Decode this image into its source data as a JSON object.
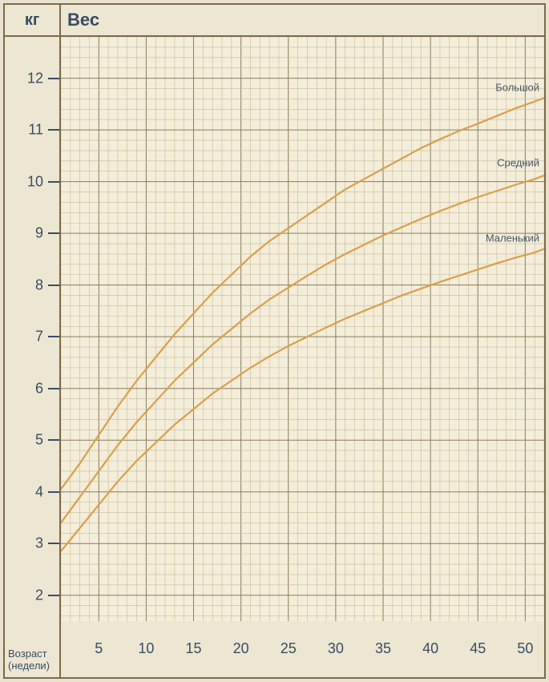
{
  "chart": {
    "type": "line",
    "unit_label": "кг",
    "title": "Вес",
    "xaxis_label_line1": "Возраст",
    "xaxis_label_line2": "(недели)",
    "background_color": "#ece6d3",
    "plot_background": "#f3edda",
    "border_color": "#7a6a4a",
    "major_grid_color": "#8b7c5a",
    "minor_grid_color": "#c7bb98",
    "text_color": "#3b4c63",
    "curve_color": "#d9a04a",
    "curve_width": 2.2,
    "title_fontsize": 22,
    "axis_tick_fontsize": 18,
    "series_label_fontsize": 13,
    "x": {
      "min": 1,
      "max": 52,
      "major_step": 5,
      "minor_step": 1,
      "ticks": [
        5,
        10,
        15,
        20,
        25,
        30,
        35,
        40,
        45,
        50
      ]
    },
    "y": {
      "min": 1.5,
      "max": 12.8,
      "major_step": 1,
      "minor_per_major": 5,
      "ticks": [
        2,
        3,
        4,
        5,
        6,
        7,
        8,
        9,
        10,
        11,
        12
      ]
    },
    "series": [
      {
        "name": "Большой",
        "label_anchor_y": 11.6,
        "points": [
          [
            1,
            4.05
          ],
          [
            3,
            4.55
          ],
          [
            5,
            5.1
          ],
          [
            7,
            5.65
          ],
          [
            9,
            6.15
          ],
          [
            11,
            6.6
          ],
          [
            13,
            7.05
          ],
          [
            15,
            7.45
          ],
          [
            17,
            7.85
          ],
          [
            19,
            8.2
          ],
          [
            21,
            8.55
          ],
          [
            23,
            8.85
          ],
          [
            25,
            9.1
          ],
          [
            27,
            9.35
          ],
          [
            29,
            9.6
          ],
          [
            31,
            9.85
          ],
          [
            33,
            10.05
          ],
          [
            35,
            10.25
          ],
          [
            37,
            10.45
          ],
          [
            39,
            10.65
          ],
          [
            41,
            10.82
          ],
          [
            43,
            10.98
          ],
          [
            45,
            11.12
          ],
          [
            47,
            11.27
          ],
          [
            49,
            11.42
          ],
          [
            51,
            11.55
          ],
          [
            52,
            11.62
          ]
        ]
      },
      {
        "name": "Средний",
        "label_anchor_y": 10.15,
        "points": [
          [
            1,
            3.4
          ],
          [
            3,
            3.9
          ],
          [
            5,
            4.4
          ],
          [
            7,
            4.9
          ],
          [
            9,
            5.35
          ],
          [
            11,
            5.75
          ],
          [
            13,
            6.15
          ],
          [
            15,
            6.5
          ],
          [
            17,
            6.85
          ],
          [
            19,
            7.15
          ],
          [
            21,
            7.45
          ],
          [
            23,
            7.72
          ],
          [
            25,
            7.95
          ],
          [
            27,
            8.18
          ],
          [
            29,
            8.4
          ],
          [
            31,
            8.6
          ],
          [
            33,
            8.78
          ],
          [
            35,
            8.96
          ],
          [
            37,
            9.12
          ],
          [
            39,
            9.28
          ],
          [
            41,
            9.43
          ],
          [
            43,
            9.57
          ],
          [
            45,
            9.7
          ],
          [
            47,
            9.82
          ],
          [
            49,
            9.94
          ],
          [
            51,
            10.05
          ],
          [
            52,
            10.12
          ]
        ]
      },
      {
        "name": "Маленький",
        "label_anchor_y": 8.7,
        "points": [
          [
            1,
            2.85
          ],
          [
            3,
            3.3
          ],
          [
            5,
            3.75
          ],
          [
            7,
            4.2
          ],
          [
            9,
            4.6
          ],
          [
            11,
            4.95
          ],
          [
            13,
            5.3
          ],
          [
            15,
            5.6
          ],
          [
            17,
            5.9
          ],
          [
            19,
            6.15
          ],
          [
            21,
            6.4
          ],
          [
            23,
            6.62
          ],
          [
            25,
            6.82
          ],
          [
            27,
            7.0
          ],
          [
            29,
            7.18
          ],
          [
            31,
            7.35
          ],
          [
            33,
            7.5
          ],
          [
            35,
            7.65
          ],
          [
            37,
            7.8
          ],
          [
            39,
            7.93
          ],
          [
            41,
            8.06
          ],
          [
            43,
            8.18
          ],
          [
            45,
            8.3
          ],
          [
            47,
            8.42
          ],
          [
            49,
            8.53
          ],
          [
            51,
            8.63
          ],
          [
            52,
            8.7
          ]
        ]
      }
    ]
  }
}
